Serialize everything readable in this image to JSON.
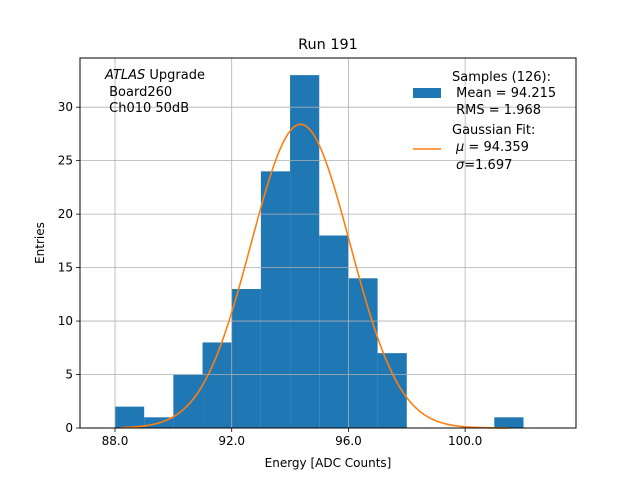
{
  "chart_data": {
    "type": "histogram",
    "title": "Run 191",
    "xlabel": "Energy [ADC Counts]",
    "ylabel": "Entries",
    "xlim": [
      86.8,
      103.8
    ],
    "ylim": [
      0,
      34.6
    ],
    "xticks": [
      88.0,
      92.0,
      96.0,
      100.0
    ],
    "xtick_labels": [
      "88.0",
      "92.0",
      "96.0",
      "100.0"
    ],
    "yticks": [
      0,
      5,
      10,
      15,
      20,
      25,
      30
    ],
    "ytick_labels": [
      "0",
      "5",
      "10",
      "15",
      "20",
      "25",
      "30"
    ],
    "grid": true,
    "bin_edges": [
      88,
      89,
      90,
      91,
      92,
      93,
      94,
      95,
      96,
      97,
      98,
      99,
      100,
      101,
      102
    ],
    "counts": [
      2,
      1,
      5,
      8,
      13,
      24,
      33,
      18,
      14,
      7,
      0,
      0,
      0,
      1
    ],
    "bar_color": "#1f77b4",
    "fit": {
      "name": "Gaussian Fit",
      "mu": 94.359,
      "sigma": 1.697,
      "color": "#ff7f0e",
      "x_range": [
        88.2,
        101.5
      ],
      "peak": 28.4
    },
    "annotation": {
      "line1_italic": "ATLAS",
      "line1_rest": " Upgrade",
      "line2": " Board260",
      "line3": " Ch010 50dB"
    },
    "legend": {
      "position": "top-right",
      "samples_line1": "Samples (126):",
      "samples_line2": " Mean = 94.215",
      "samples_line3": " RMS = 1.968",
      "fit_line1": "Gaussian Fit:",
      "fit_mu_symbol": "μ",
      "fit_mu_text": " = 94.359",
      "fit_sigma_symbol": "σ",
      "fit_sigma_text": "=1.697"
    }
  }
}
